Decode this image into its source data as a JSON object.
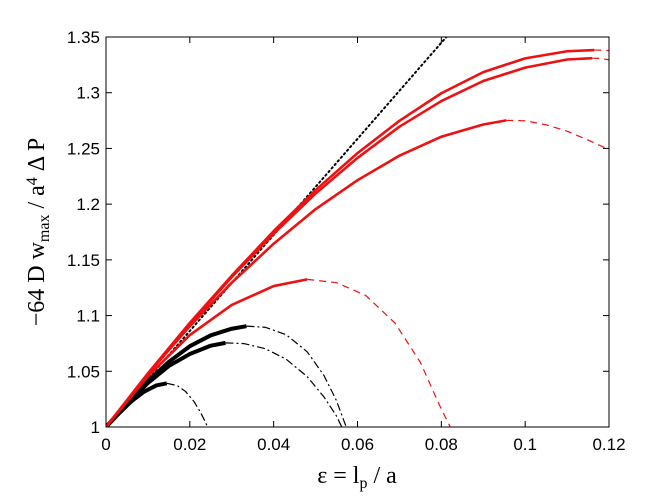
{
  "chart_data": {
    "type": "line",
    "xlabel": {
      "parts": [
        {
          "text": "ε = l"
        },
        {
          "text": "p",
          "sub": true
        },
        {
          "text": " / a"
        }
      ]
    },
    "ylabel": {
      "parts": [
        {
          "text": "−64 D w"
        },
        {
          "text": "max",
          "sub": true
        },
        {
          "text": " / a"
        },
        {
          "text": "4",
          "sup": true
        },
        {
          "text": " Δ P"
        }
      ]
    },
    "xlim": [
      0,
      0.12
    ],
    "ylim": [
      1,
      1.35
    ],
    "xticks": [
      0,
      0.02,
      0.04,
      0.06,
      0.08,
      0.1,
      0.12
    ],
    "xtick_labels": [
      "0",
      "0.02",
      "0.04",
      "0.06",
      "0.08",
      "0.1",
      "0.12"
    ],
    "yticks": [
      1,
      1.05,
      1.1,
      1.15,
      1.2,
      1.25,
      1.3,
      1.35
    ],
    "ytick_labels": [
      "1",
      "1.05",
      "1.1",
      "1.15",
      "1.2",
      "1.25",
      "1.3",
      "1.35"
    ],
    "grid": false,
    "colors": {
      "red": "#ee1111",
      "black": "#000000"
    },
    "series": [
      {
        "color": "#000000",
        "style": "dotted",
        "width": 2,
        "x": [
          0,
          0.0812
        ],
        "y": [
          1,
          1.35
        ]
      },
      {
        "color": "#000000",
        "style": "solid",
        "width": 4,
        "x": [
          0,
          0.003,
          0.006,
          0.009,
          0.012,
          0.0145
        ],
        "y": [
          1,
          1.0118,
          1.0228,
          1.0315,
          1.0373,
          1.0392
        ]
      },
      {
        "color": "#000000",
        "style": "dashdot",
        "width": 1.2,
        "x": [
          0.0145,
          0.017,
          0.019,
          0.021,
          0.0225,
          0.0235,
          0.0245
        ],
        "y": [
          1.0392,
          1.0372,
          1.0318,
          1.0228,
          1.0135,
          1.006,
          0.998
        ]
      },
      {
        "color": "#000000",
        "style": "solid",
        "width": 4,
        "x": [
          0,
          0.005,
          0.01,
          0.015,
          0.02,
          0.025,
          0.0285
        ],
        "y": [
          1,
          1.0205,
          1.0395,
          1.0548,
          1.0655,
          1.073,
          1.0755
        ]
      },
      {
        "color": "#000000",
        "style": "dashdot",
        "width": 1.2,
        "x": [
          0.0285,
          0.033,
          0.038,
          0.043,
          0.048,
          0.052,
          0.055,
          0.0565
        ],
        "y": [
          1.0755,
          1.0748,
          1.0703,
          1.0608,
          1.0452,
          1.027,
          1.0098,
          0.998
        ]
      },
      {
        "color": "#000000",
        "style": "solid",
        "width": 4,
        "x": [
          0,
          0.005,
          0.01,
          0.015,
          0.02,
          0.025,
          0.03,
          0.0335
        ],
        "y": [
          1,
          1.021,
          1.0412,
          1.0585,
          1.0725,
          1.0823,
          1.0882,
          1.0905
        ]
      },
      {
        "color": "#000000",
        "style": "dashdot",
        "width": 1.2,
        "x": [
          0.0335,
          0.038,
          0.043,
          0.048,
          0.052,
          0.055,
          0.0575
        ],
        "y": [
          1.0905,
          1.0895,
          1.0828,
          1.0675,
          1.0462,
          1.0235,
          0.998
        ]
      },
      {
        "color": "#ee1111",
        "style": "solid",
        "width": 2.6,
        "x": [
          0,
          0.01,
          0.02,
          0.03,
          0.04,
          0.048
        ],
        "y": [
          1,
          1.0455,
          1.0825,
          1.1095,
          1.1265,
          1.1325
        ]
      },
      {
        "color": "#ee1111",
        "style": "dashed",
        "width": 1.2,
        "x": [
          0.048,
          0.055,
          0.062,
          0.069,
          0.075,
          0.0795,
          0.0825
        ],
        "y": [
          1.1325,
          1.1295,
          1.118,
          1.093,
          1.058,
          1.02,
          0.997
        ]
      },
      {
        "color": "#ee1111",
        "style": "solid",
        "width": 2.6,
        "x": [
          0,
          0.01,
          0.02,
          0.03,
          0.04,
          0.05,
          0.06,
          0.07,
          0.08,
          0.09,
          0.0955
        ],
        "y": [
          1,
          1.0475,
          1.0905,
          1.1295,
          1.1645,
          1.1955,
          1.2215,
          1.2435,
          1.2605,
          1.2715,
          1.2752
        ]
      },
      {
        "color": "#ee1111",
        "style": "dashed",
        "width": 1.2,
        "x": [
          0.0955,
          0.1,
          0.105,
          0.11,
          0.115,
          0.12
        ],
        "y": [
          1.2752,
          1.2748,
          1.2712,
          1.2655,
          1.2575,
          1.249
        ]
      },
      {
        "color": "#ee1111",
        "style": "solid",
        "width": 2.6,
        "x": [
          0,
          0.01,
          0.02,
          0.03,
          0.04,
          0.05,
          0.06,
          0.07,
          0.08,
          0.09,
          0.1,
          0.11,
          0.116
        ],
        "y": [
          1,
          1.0478,
          1.0925,
          1.1345,
          1.1735,
          1.2095,
          1.2415,
          1.2695,
          1.2925,
          1.3105,
          1.3225,
          1.3298,
          1.331
        ]
      },
      {
        "color": "#ee1111",
        "style": "dashed",
        "width": 1.2,
        "x": [
          0.116,
          0.118,
          0.12
        ],
        "y": [
          1.331,
          1.3308,
          1.3295
        ]
      },
      {
        "color": "#ee1111",
        "style": "solid",
        "width": 2.6,
        "x": [
          0,
          0.01,
          0.02,
          0.03,
          0.04,
          0.05,
          0.06,
          0.07,
          0.08,
          0.09,
          0.1,
          0.11,
          0.1165
        ],
        "y": [
          1,
          1.0482,
          1.0935,
          1.1358,
          1.1758,
          1.2125,
          1.2458,
          1.2748,
          1.2995,
          1.3185,
          1.3308,
          1.3372,
          1.3383
        ]
      },
      {
        "color": "#ee1111",
        "style": "dashed",
        "width": 1.2,
        "x": [
          0.1165,
          0.118,
          0.12
        ],
        "y": [
          1.3383,
          1.3382,
          1.3378
        ]
      }
    ]
  }
}
